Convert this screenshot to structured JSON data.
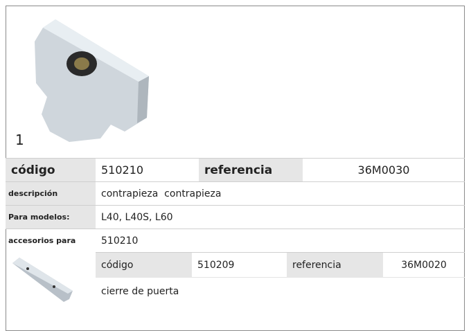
{
  "product": {
    "number": "1",
    "code_label": "código",
    "code": "510210",
    "reference_label": "referencia",
    "reference": "36M0030",
    "rows": [
      {
        "label": "descripción",
        "value": "contrapieza  contrapieza"
      },
      {
        "label": "Para modelos:",
        "value": "L40, L40S, L60"
      },
      {
        "label": "accesorios para",
        "value": "510210"
      }
    ]
  },
  "accessory": {
    "code_label": "código",
    "code": "510209",
    "reference_label": "referencia",
    "reference": "36M0020",
    "description": "cierre de puerta"
  }
}
